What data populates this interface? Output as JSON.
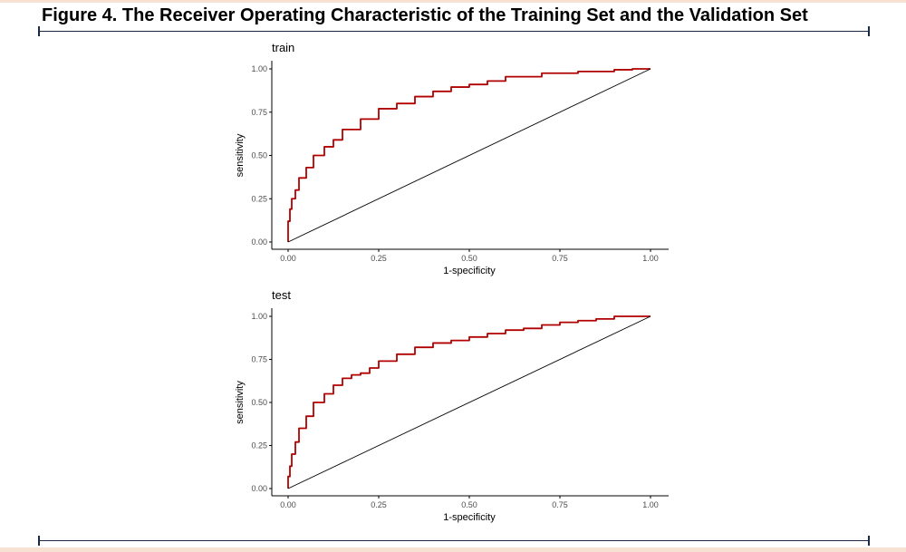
{
  "figure": {
    "title": "Figure 4. The Receiver Operating Characteristic of the Training Set and the Validation Set"
  },
  "colors": {
    "roc": "#b00000",
    "diagonal": "#000000",
    "axis": "#000000",
    "rule": "#1b2a44"
  },
  "chart_data": [
    {
      "type": "line",
      "title": "train",
      "xlabel": "1-specificity",
      "ylabel": "sensitivity",
      "xlim": [
        0,
        1
      ],
      "ylim": [
        0,
        1
      ],
      "xticks": [
        "0.00",
        "0.25",
        "0.50",
        "0.75",
        "1.00"
      ],
      "yticks": [
        "0.00",
        "0.25",
        "0.50",
        "0.75",
        "1.00"
      ],
      "grid": false,
      "series": [
        {
          "x": [
            0,
            0.005,
            0.01,
            0.02,
            0.03,
            0.05,
            0.07,
            0.1,
            0.125,
            0.15,
            0.2,
            0.25,
            0.3,
            0.35,
            0.4,
            0.45,
            0.5,
            0.55,
            0.6,
            0.7,
            0.8,
            0.9,
            0.95,
            1.0
          ],
          "y": [
            0,
            0.12,
            0.19,
            0.25,
            0.3,
            0.37,
            0.43,
            0.5,
            0.55,
            0.59,
            0.65,
            0.71,
            0.77,
            0.8,
            0.84,
            0.87,
            0.895,
            0.91,
            0.93,
            0.955,
            0.975,
            0.985,
            0.995,
            1.0
          ]
        },
        {
          "x": [
            0,
            1
          ],
          "y": [
            0,
            1
          ]
        }
      ]
    },
    {
      "type": "line",
      "title": "test",
      "xlabel": "1-specificity",
      "ylabel": "sensitivity",
      "xlim": [
        0,
        1
      ],
      "ylim": [
        0,
        1
      ],
      "xticks": [
        "0.00",
        "0.25",
        "0.50",
        "0.75",
        "1.00"
      ],
      "yticks": [
        "0.00",
        "0.25",
        "0.50",
        "0.75",
        "1.00"
      ],
      "grid": false,
      "series": [
        {
          "x": [
            0,
            0.005,
            0.01,
            0.02,
            0.03,
            0.05,
            0.07,
            0.1,
            0.125,
            0.15,
            0.175,
            0.2,
            0.225,
            0.25,
            0.3,
            0.35,
            0.4,
            0.45,
            0.5,
            0.55,
            0.6,
            0.65,
            0.7,
            0.75,
            0.8,
            0.85,
            0.9,
            1.0
          ],
          "y": [
            0,
            0.07,
            0.13,
            0.2,
            0.27,
            0.35,
            0.42,
            0.5,
            0.55,
            0.6,
            0.64,
            0.66,
            0.67,
            0.7,
            0.74,
            0.78,
            0.82,
            0.845,
            0.86,
            0.88,
            0.9,
            0.92,
            0.93,
            0.95,
            0.965,
            0.975,
            0.985,
            1.0
          ]
        },
        {
          "x": [
            0,
            1
          ],
          "y": [
            0,
            1
          ]
        }
      ]
    }
  ]
}
